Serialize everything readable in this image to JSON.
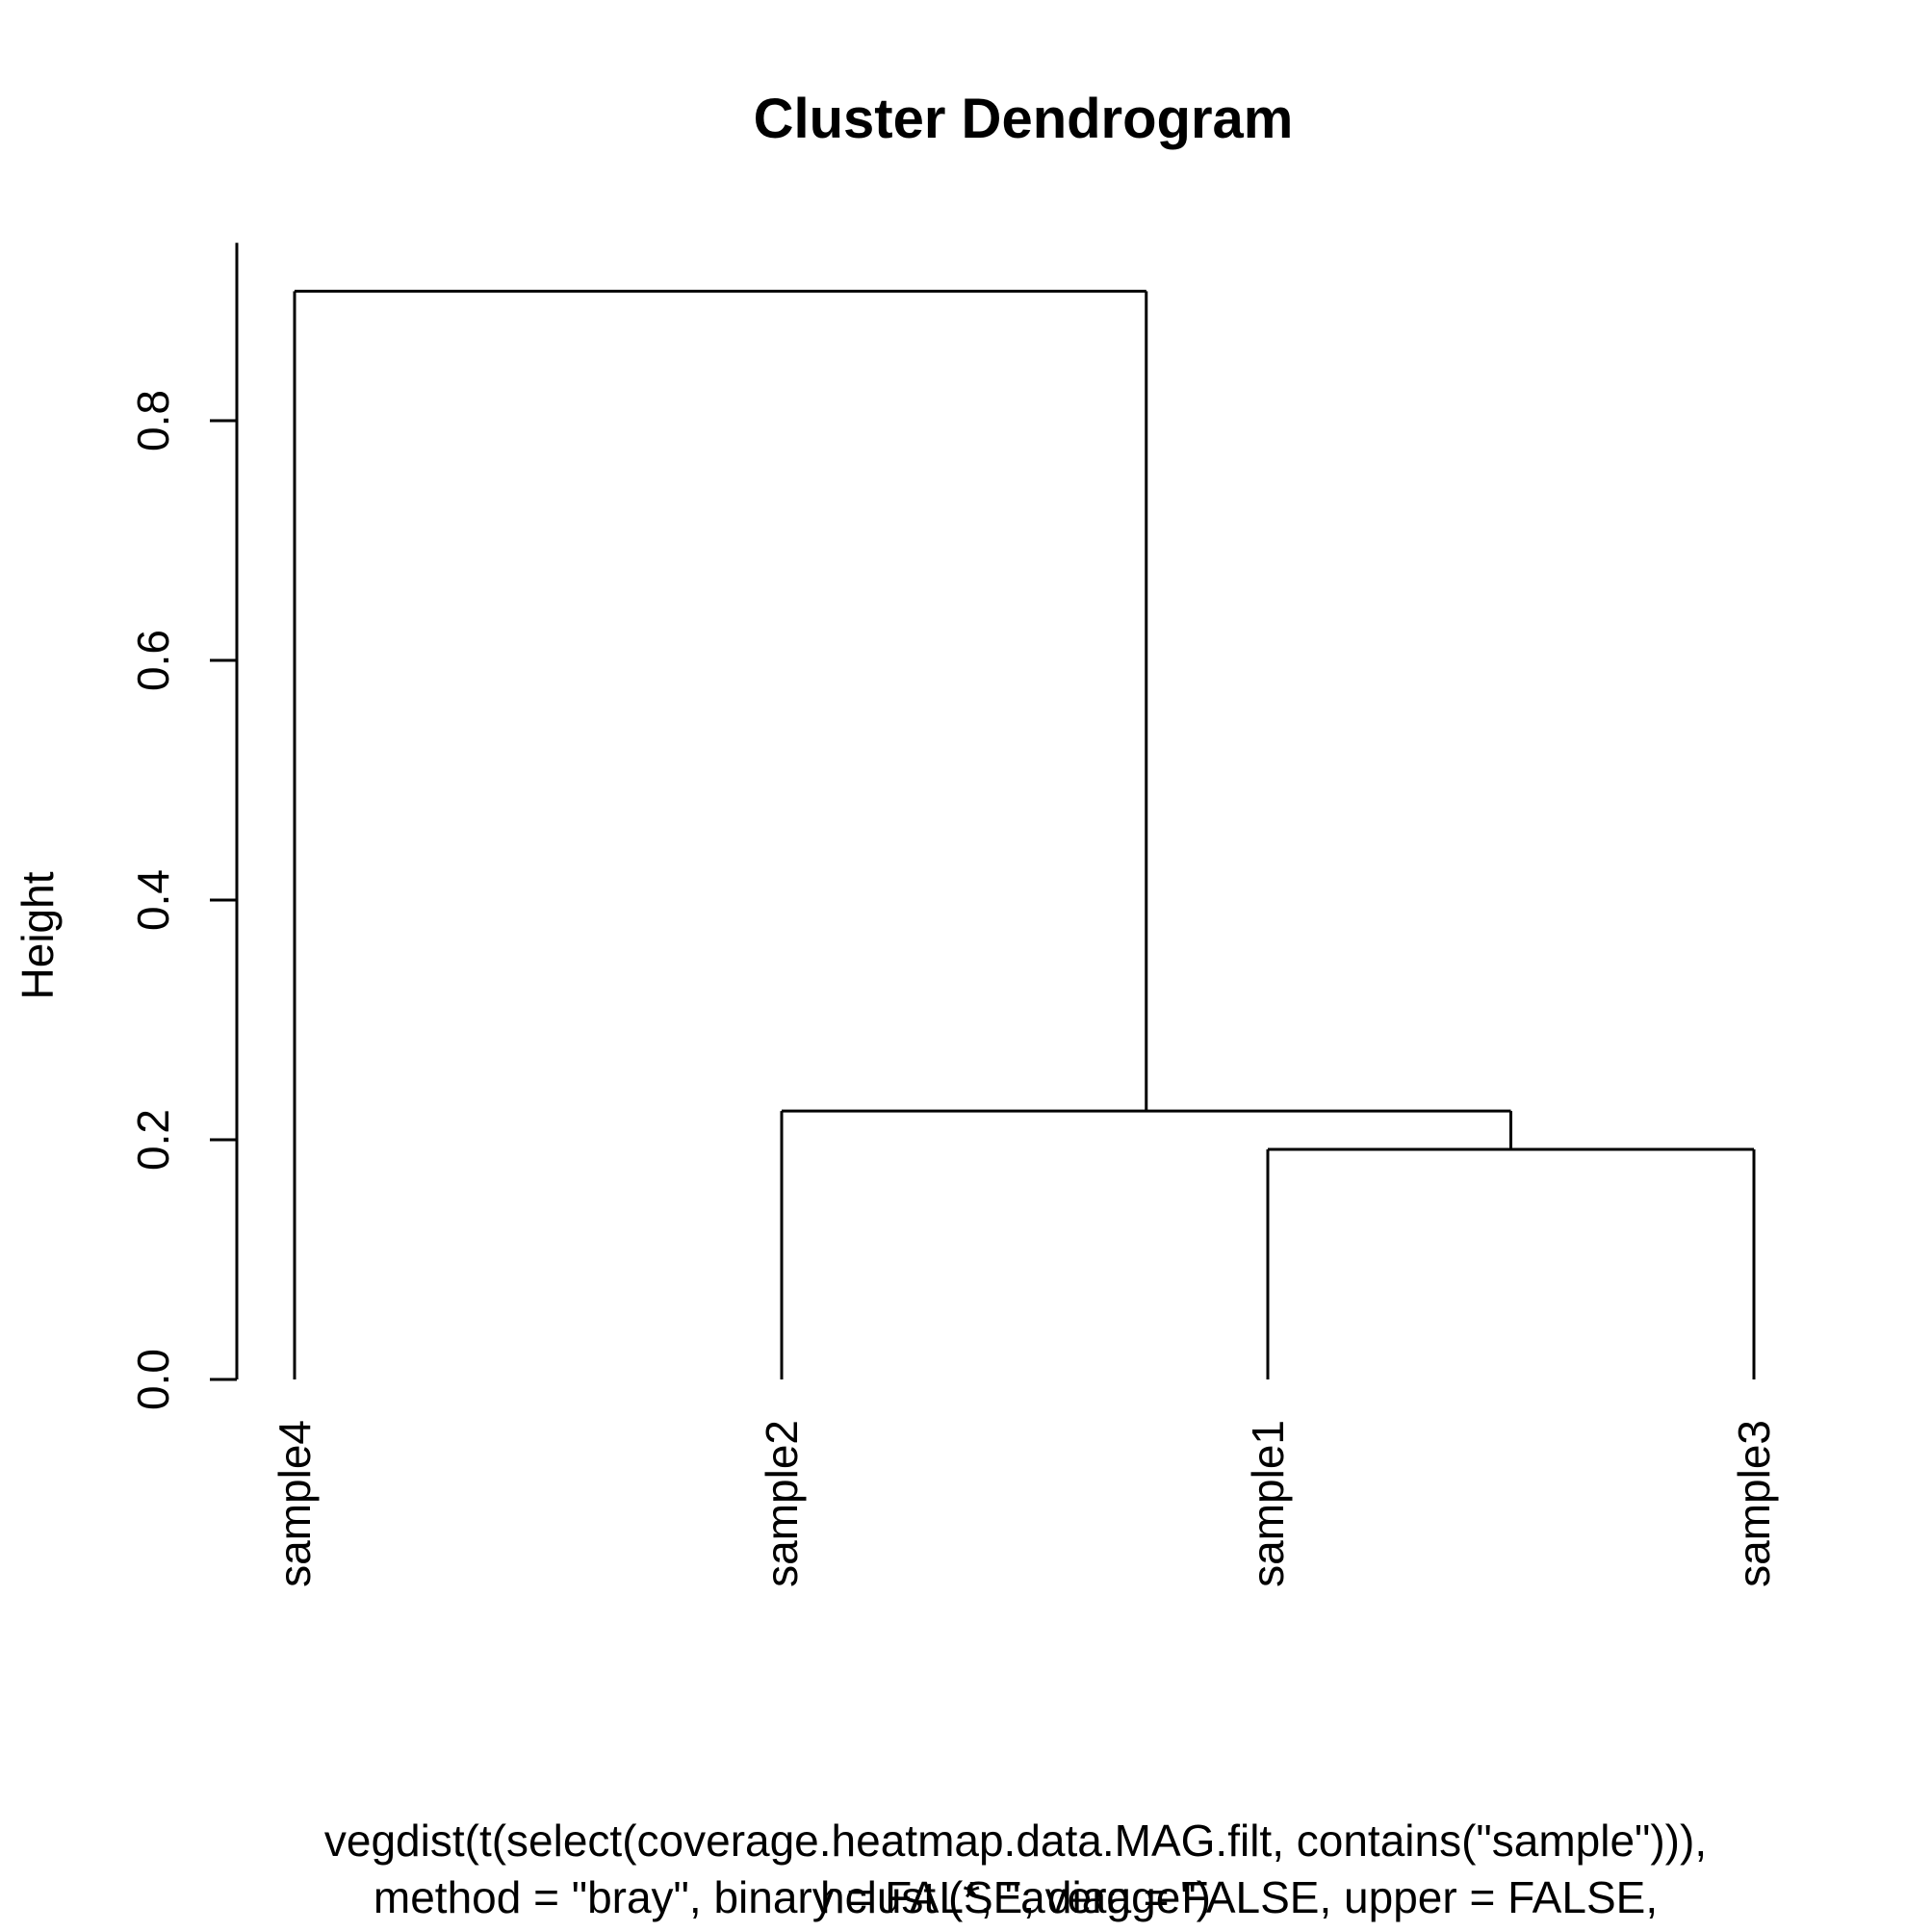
{
  "chart_data": {
    "type": "dendrogram",
    "title": "Cluster Dendrogram",
    "ylabel": "Height",
    "ylim": [
      0,
      0.95
    ],
    "yticks": [
      0.0,
      0.2,
      0.4,
      0.6,
      0.8
    ],
    "ytick_labels": [
      "0.0",
      "0.2",
      "0.4",
      "0.6",
      "0.8"
    ],
    "leaves": [
      "sample4",
      "sample2",
      "sample1",
      "sample3"
    ],
    "merges": [
      {
        "left": "sample1",
        "right": "sample3",
        "height": 0.192
      },
      {
        "left": "sample2",
        "right": "sample1+sample3",
        "height": 0.224
      },
      {
        "left": "sample4",
        "right": "sample2+sample1+sample3",
        "height": 0.908
      }
    ],
    "subtitle_lines": [
      "vegdist(t(select(coverage.heatmap.data.MAG.filt, contains(\"sample\"))),",
      "method = \"bray\", binary = FALSE, diag = FALSE, upper = FALSE,",
      "hclust (*, \"average\")"
    ]
  },
  "colors": {
    "line": "#000000",
    "background": "#ffffff"
  }
}
